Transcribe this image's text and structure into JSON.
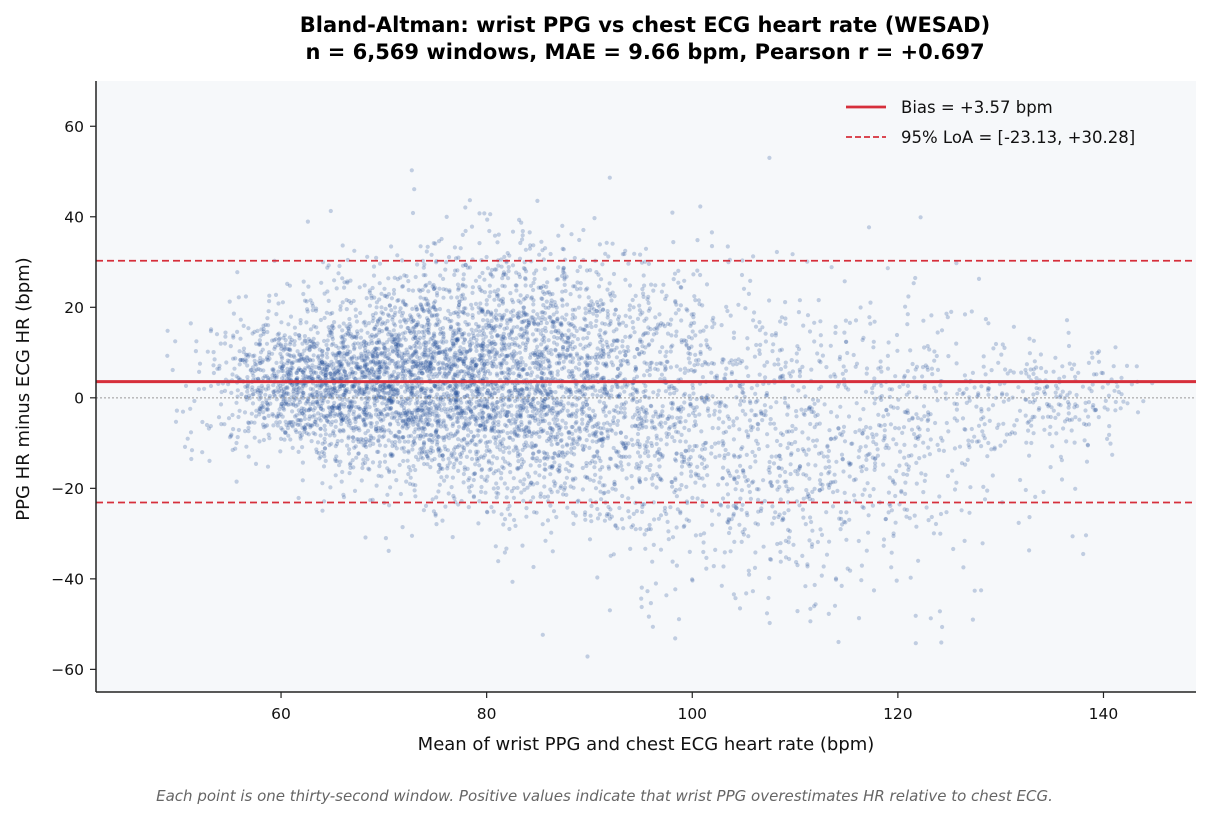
{
  "chart_data": {
    "type": "scatter",
    "title": "Bland-Altman: wrist PPG vs chest ECG heart rate (WESAD)",
    "subtitle": "n = 6,569 windows, MAE = 9.66 bpm, Pearson r = +0.697",
    "xlabel": "Mean of wrist PPG and chest ECG heart rate (bpm)",
    "ylabel": "PPG HR minus ECG HR (bpm)",
    "xlim": [
      42,
      149
    ],
    "ylim": [
      -65,
      70
    ],
    "x_ticks": [
      60,
      80,
      100,
      120,
      140
    ],
    "y_ticks": [
      -60,
      -40,
      -20,
      0,
      20,
      40,
      60
    ],
    "x_tick_labels": [
      "60",
      "80",
      "100",
      "120",
      "140"
    ],
    "y_tick_labels": [
      "−60",
      "−40",
      "−20",
      "0",
      "20",
      "40",
      "60"
    ],
    "bias": 3.57,
    "loa": [
      -23.13,
      30.28
    ],
    "n_points": 6569,
    "grid": false,
    "legend_position": "top-right",
    "legend": [
      {
        "label": "Bias = +3.57 bpm",
        "style": "solid",
        "color": "#d62f3b"
      },
      {
        "label": "95% LoA = [-23.13, +30.28]",
        "style": "dashed",
        "color": "#d62f3b"
      }
    ],
    "colors": {
      "points": "#1f4a96",
      "bias": "#d62f3b",
      "loa": "#d62f3b",
      "zero": "#999999",
      "plot_bg": "#f6f8fa"
    },
    "point_cloud_centers": [
      {
        "x": 62,
        "y": 3,
        "sx": 5,
        "sy": 7,
        "n": 900
      },
      {
        "x": 72,
        "y": 3,
        "sx": 6,
        "sy": 11,
        "n": 1700
      },
      {
        "x": 82,
        "y": 5,
        "sx": 6,
        "sy": 14,
        "n": 1600
      },
      {
        "x": 92,
        "y": 0,
        "sx": 6,
        "sy": 16,
        "n": 1000
      },
      {
        "x": 106,
        "y": -10,
        "sx": 7,
        "sy": 18,
        "n": 700
      },
      {
        "x": 120,
        "y": -8,
        "sx": 7,
        "sy": 16,
        "n": 450
      },
      {
        "x": 135,
        "y": 0,
        "sx": 5,
        "sy": 6,
        "n": 219
      }
    ]
  },
  "caption": "Each point is one thirty-second window. Positive values indicate that wrist PPG overestimates HR relative to chest ECG."
}
